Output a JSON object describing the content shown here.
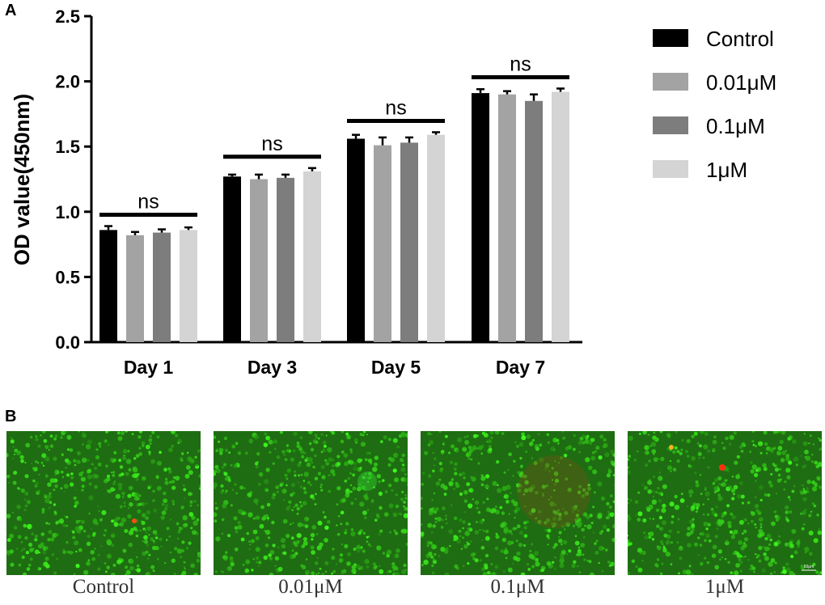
{
  "panel_a_label": "A",
  "panel_b_label": "B",
  "chart_data": {
    "type": "bar",
    "title": "",
    "xlabel": "",
    "ylabel": "OD value(450nm)",
    "ylim": [
      0,
      2.5
    ],
    "yticks": [
      "0.0",
      "0.5",
      "1.0",
      "1.5",
      "2.0",
      "2.5"
    ],
    "categories": [
      "Day 1",
      "Day 3",
      "Day 5",
      "Day 7"
    ],
    "series": [
      {
        "name": "Control",
        "color": "#000000",
        "values": [
          0.86,
          1.27,
          1.56,
          1.91
        ],
        "errors": [
          0.03,
          0.015,
          0.03,
          0.03
        ]
      },
      {
        "name": "0.01μM",
        "color": "#a3a3a3",
        "values": [
          0.82,
          1.25,
          1.51,
          1.9
        ],
        "errors": [
          0.025,
          0.035,
          0.06,
          0.025
        ]
      },
      {
        "name": "0.1μM",
        "color": "#7d7d7d",
        "values": [
          0.84,
          1.26,
          1.53,
          1.85
        ],
        "errors": [
          0.025,
          0.025,
          0.04,
          0.05
        ]
      },
      {
        "name": "1μM",
        "color": "#d4d4d4",
        "values": [
          0.86,
          1.31,
          1.59,
          1.92
        ],
        "errors": [
          0.02,
          0.025,
          0.02,
          0.025
        ]
      }
    ],
    "significance": [
      "ns",
      "ns",
      "ns",
      "ns"
    ],
    "legend_position": "top-right",
    "grid": false
  },
  "micrographs": [
    {
      "caption": "Control"
    },
    {
      "caption": "0.01μM"
    },
    {
      "caption": "0.1μM"
    },
    {
      "caption": "1μM",
      "scale_bar_label": "50μm"
    }
  ]
}
